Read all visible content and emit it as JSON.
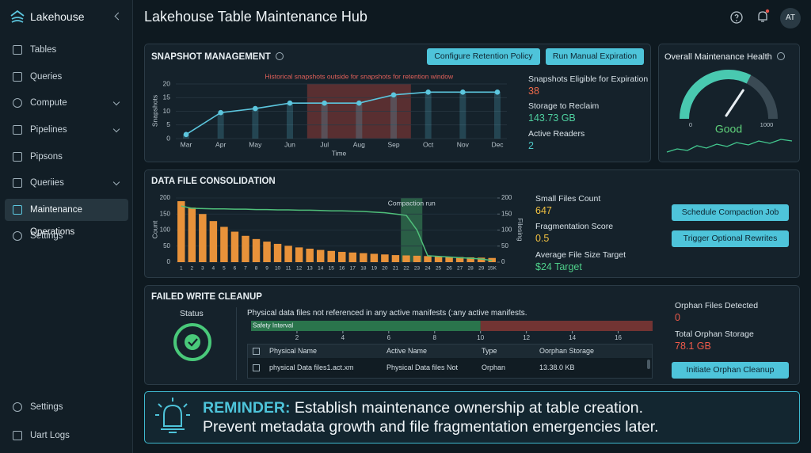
{
  "sidebar": {
    "brand": "Lakehouse",
    "nav": [
      "Tables",
      "Queries",
      "Compute",
      "Pipelines",
      "Pipsons",
      "Queriies",
      "Maintenance Operations",
      "Settings"
    ],
    "footer": [
      "Settings",
      "Uart Logs"
    ]
  },
  "header": {
    "title": "Lakehouse Table Maintenance Hub",
    "avatar": "AT"
  },
  "snapshot": {
    "title": "SNAPSHOT MANAGEMENT",
    "buttons": [
      "Configure Retention Policy",
      "Run Manual Expiration"
    ],
    "stats": [
      {
        "label": "Snapshots Eligible for Expiration",
        "value": 38
      },
      {
        "label": "Storage to Reclaim",
        "value": "143.73 GB"
      },
      {
        "label": "Active Readers",
        "value": 2
      }
    ],
    "chart_data": {
      "type": "line",
      "categories": [
        "Mar",
        "Apr",
        "May",
        "Jun",
        "Jul",
        "Aug",
        "Sep",
        "Oct",
        "Nov",
        "Dec"
      ],
      "values": [
        1.5,
        9.5,
        11,
        13,
        13,
        13,
        16,
        17,
        17,
        17
      ],
      "color": "#5cc6de",
      "ylim": [
        0,
        20
      ],
      "yticks": [
        0,
        5,
        10,
        15,
        20
      ],
      "grid": true,
      "y_label": "Snapshots",
      "x_label": "Time",
      "annotation": "Historical snapshots outside for snapshots for retention window",
      "highlight": {
        "from": "Jul",
        "to": "Sep",
        "color": "#c0443c"
      }
    }
  },
  "health": {
    "title": "Overall Maintenance Health",
    "chart_data": {
      "type": "gauge",
      "value": 650,
      "range": [
        0,
        1000
      ],
      "ticks": [
        0,
        1000
      ],
      "label": "Good",
      "color": "#49c9b0"
    }
  },
  "consolidation": {
    "title": "DATA FILE CONSOLIDATION",
    "stats": [
      {
        "label": "Small Files Count",
        "value": 647
      },
      {
        "label": "Fragmentation Score",
        "value": 0.5
      },
      {
        "label": "Average File Size Target",
        "value": "$24 Target"
      }
    ],
    "buttons": [
      "Schedule Compaction Job",
      "Trigger Optional Rewrites"
    ],
    "chart_data": {
      "type": "bar",
      "categories": [
        "1",
        "2",
        "3",
        "4",
        "5",
        "6",
        "7",
        "8",
        "9",
        "10",
        "11",
        "12",
        "13",
        "14",
        "15",
        "16",
        "17",
        "18",
        "19",
        "20",
        "21",
        "22",
        "23",
        "24",
        "25",
        "26",
        "27",
        "28",
        "29",
        "15K"
      ],
      "series": [
        {
          "type": "bar",
          "color": "#e8923a",
          "values": [
            190,
            170,
            150,
            128,
            110,
            95,
            82,
            72,
            64,
            57,
            51,
            46,
            42,
            38,
            35,
            32,
            30,
            28,
            26,
            24,
            22,
            21,
            20,
            19,
            18,
            17,
            16,
            15,
            14,
            13
          ]
        },
        {
          "type": "line",
          "axis": "y2",
          "color": "#4fbf7a",
          "values": [
            175,
            168,
            167,
            166,
            166,
            165,
            165,
            164,
            164,
            163,
            163,
            162,
            162,
            161,
            160,
            160,
            159,
            158,
            156,
            154,
            150,
            146,
            100,
            20,
            18,
            16,
            14,
            12,
            10,
            5
          ]
        }
      ],
      "ylim": [
        0,
        200
      ],
      "yticks": [
        0,
        50,
        100,
        150,
        200
      ],
      "y2lim": [
        0,
        200
      ],
      "y2ticks": [
        0,
        50,
        100,
        150,
        200
      ],
      "y_label": "Count",
      "y2_label": "Filesing",
      "annotation": "Compaction run",
      "highlight": {
        "from": "22",
        "to": "23",
        "color": "#3f9a62"
      }
    }
  },
  "cleanup": {
    "title": "FAILED WRITE CLEANUP",
    "status_label": "Status",
    "description": "Physical data files not referenced in any active manifests (:any active manifests.",
    "interval": {
      "label": "Safety Interval",
      "xlim": [
        0,
        17.5
      ],
      "xticks": [
        2,
        4,
        6,
        8,
        10,
        12,
        14,
        16
      ],
      "value": 10
    },
    "table": {
      "columns": [
        "Physical Name",
        "Active Name",
        "Type",
        "Oorphan Storage"
      ],
      "rows": [
        [
          "physical Data files1.act.xm",
          "Physical Data files Not",
          "Orphan",
          "13.38.0 KB"
        ]
      ]
    },
    "stats": [
      {
        "label": "Orphan Files Detected",
        "value": 0
      },
      {
        "label": "Total Orphan Storage",
        "value": "78.1 GB"
      }
    ],
    "button": "Initiate Orphan Cleanup"
  },
  "reminder": {
    "lead": "REMINDER:",
    "lines": [
      "Establish maintenance ownership at table creation.",
      "Prevent metadata growth and file fragmentation emergencies later."
    ]
  }
}
